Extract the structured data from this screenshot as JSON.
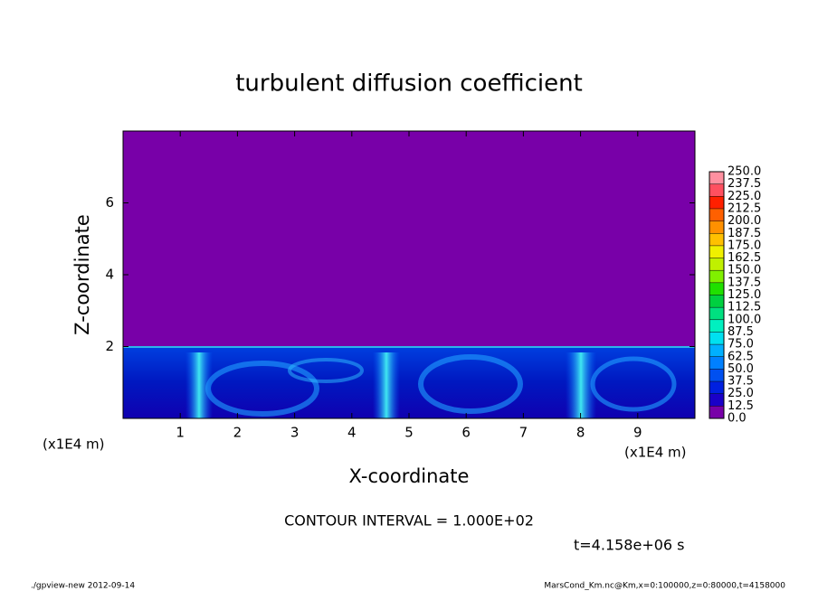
{
  "chart_data": {
    "type": "contour",
    "title": "turbulent diffusion coefficient",
    "xlabel": "X-coordinate",
    "ylabel": "Z-coordinate",
    "x_unit_label": "(x1E4 m)",
    "xlim": [
      0,
      10
    ],
    "xticks": [
      1,
      2,
      3,
      4,
      5,
      6,
      7,
      8,
      9
    ],
    "ylim": [
      0,
      8
    ],
    "yticks": [
      2,
      4,
      6
    ],
    "colorbar": {
      "ticks": [
        {
          "value": 0,
          "label": "0.0"
        },
        {
          "value": 12.5,
          "label": "12.5"
        },
        {
          "value": 25,
          "label": "25.0"
        },
        {
          "value": 37.5,
          "label": "37.5"
        },
        {
          "value": 50,
          "label": "50.0"
        },
        {
          "value": 62.5,
          "label": "62.5"
        },
        {
          "value": 75,
          "label": "75.0"
        },
        {
          "value": 87.5,
          "label": "87.5"
        },
        {
          "value": 100,
          "label": "100.0"
        },
        {
          "value": 112.5,
          "label": "112.5"
        },
        {
          "value": 125,
          "label": "125.0"
        },
        {
          "value": 137.5,
          "label": "137.5"
        },
        {
          "value": 150,
          "label": "150.0"
        },
        {
          "value": 162.5,
          "label": "162.5"
        },
        {
          "value": 175,
          "label": "175.0"
        },
        {
          "value": 187.5,
          "label": "187.5"
        },
        {
          "value": 200,
          "label": "200.0"
        },
        {
          "value": 212.5,
          "label": "212.5"
        },
        {
          "value": 225,
          "label": "225.0"
        },
        {
          "value": 237.5,
          "label": "237.5"
        },
        {
          "value": 250,
          "label": "250.0"
        }
      ],
      "colors": [
        "#7800a8",
        "#1a00c8",
        "#0020e0",
        "#0050f0",
        "#0080ff",
        "#00b0ff",
        "#00e0f0",
        "#00f0c0",
        "#00e080",
        "#00d040",
        "#20e000",
        "#80f000",
        "#c0f000",
        "#f0f000",
        "#ffc000",
        "#ff9000",
        "#ff6000",
        "#ff2000",
        "#ff5060",
        "#ff90a0"
      ]
    },
    "annotations": [
      "CONTOUR INTERVAL = 1.000E+02",
      "t=4.158e+06 s"
    ],
    "footer_left": "./gpview-new  2012-09-14",
    "footer_right": "MarsCond_Km.nc@Km,x=0:100000,z=0:80000,t=4158000"
  }
}
